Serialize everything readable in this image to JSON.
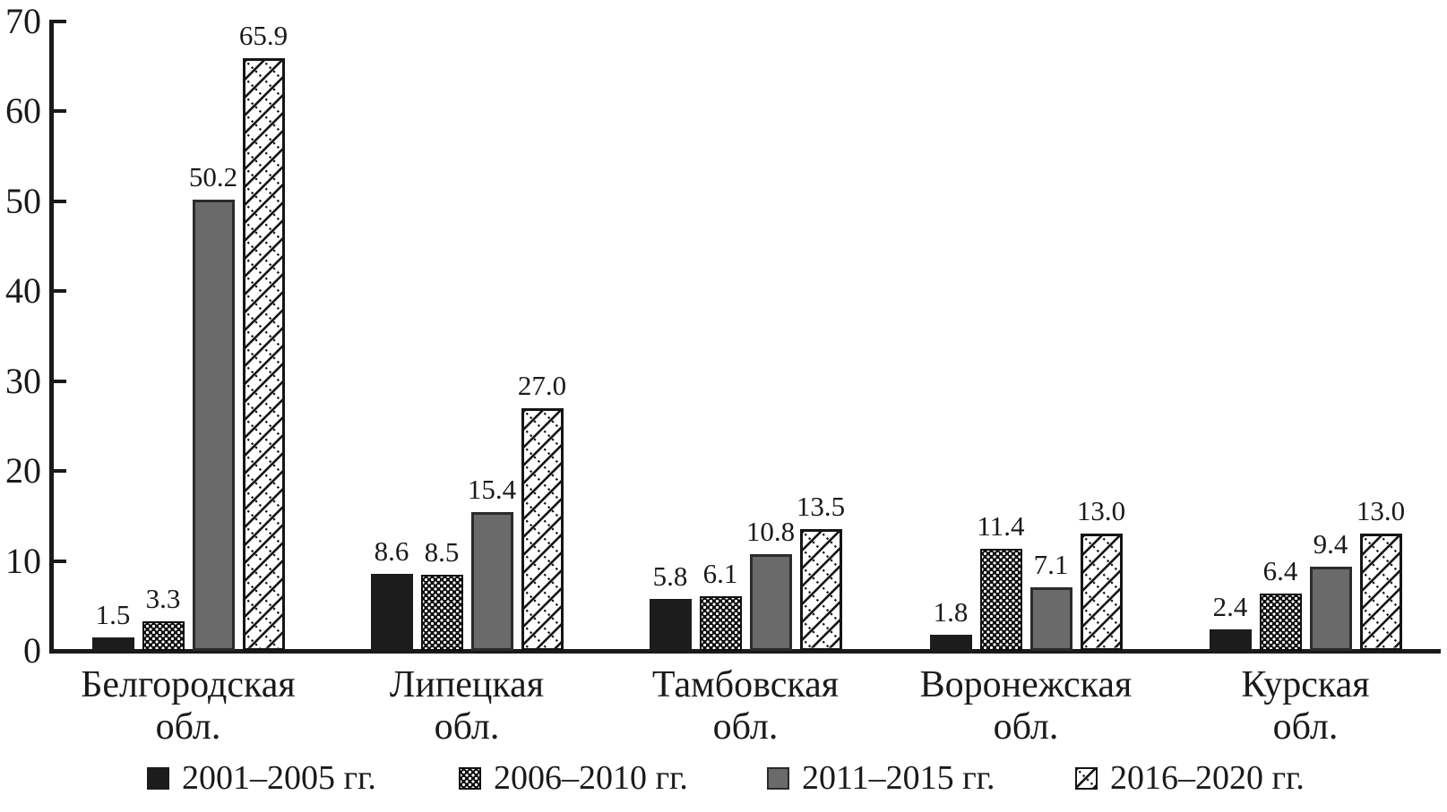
{
  "chart_data": {
    "type": "bar",
    "title": "",
    "xlabel": "",
    "ylabel": "",
    "categories": [
      "Белгородская обл.",
      "Липецкая обл.",
      "Тамбовская обл.",
      "Воронежская обл.",
      "Курская обл."
    ],
    "category_lines": [
      [
        "Белгородская",
        "обл."
      ],
      [
        "Липецкая",
        "обл."
      ],
      [
        "Тамбовская",
        "обл."
      ],
      [
        "Воронежская",
        "обл."
      ],
      [
        "Курская",
        "обл."
      ]
    ],
    "series": [
      {
        "name": "2001–2005 гг.",
        "pattern": "solid-black",
        "values": [
          1.5,
          8.6,
          5.8,
          1.8,
          2.4
        ]
      },
      {
        "name": "2006–2010 гг.",
        "pattern": "dotted-black",
        "values": [
          3.3,
          8.5,
          6.1,
          11.4,
          6.4
        ]
      },
      {
        "name": "2011–2015 гг.",
        "pattern": "solid-gray",
        "values": [
          50.2,
          15.4,
          10.8,
          7.1,
          9.4
        ]
      },
      {
        "name": "2016–2020 гг.",
        "pattern": "diagonal-hatch",
        "values": [
          65.9,
          27.0,
          13.5,
          13.0,
          13.0
        ]
      }
    ],
    "ylim": [
      0,
      70
    ],
    "yticks": [
      0,
      10,
      20,
      30,
      40,
      50,
      60,
      70
    ],
    "grid": false,
    "legend_position": "bottom",
    "bar_value_labels": true,
    "value_label_decimals": 1,
    "colors": {
      "solid_black": "#1c1c1c",
      "solid_gray": "#6a6a6a",
      "outline": "#1a1a1a",
      "background": "#ffffff"
    }
  }
}
